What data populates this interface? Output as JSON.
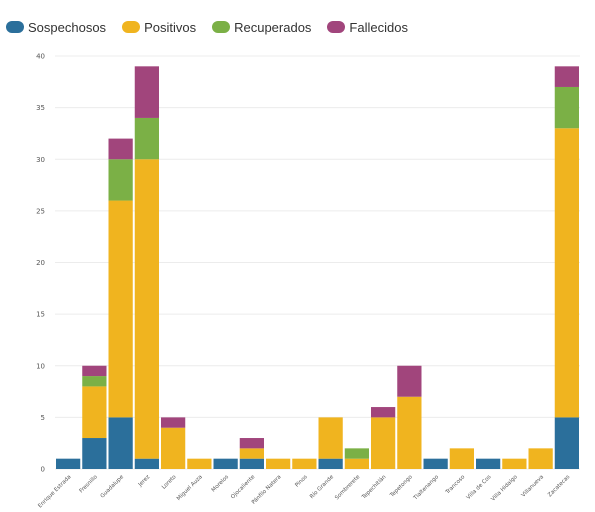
{
  "chart_data": {
    "type": "bar",
    "stacked": true,
    "title": "",
    "xlabel": "",
    "ylabel": "",
    "ylim": [
      0,
      40
    ],
    "yticks": [
      0,
      5,
      10,
      15,
      20,
      25,
      30,
      35,
      40
    ],
    "grid": true,
    "legend_position": "top-left",
    "categories": [
      "Enrique Estrada",
      "Fresnillo",
      "Guadalupe",
      "Jerez",
      "Loreto",
      "Miguel Auza",
      "Morelos",
      "Ojocaliente",
      "Pánfilo Natera",
      "Pinos",
      "Río Grande",
      "Sombrerete",
      "Tepechitlán",
      "Tepetongo",
      "Tlaltenango",
      "Trancoso",
      "Villa de Cos",
      "Villa Hidalgo",
      "Villanueva",
      "Zacatecas"
    ],
    "series": [
      {
        "name": "Sospechosos",
        "color": "#2b6f9b",
        "values": [
          1,
          3,
          5,
          1,
          0,
          0,
          1,
          1,
          0,
          0,
          1,
          0,
          0,
          0,
          1,
          0,
          1,
          0,
          0,
          5
        ]
      },
      {
        "name": "Positivos",
        "color": "#f0b41f",
        "values": [
          0,
          5,
          21,
          29,
          4,
          1,
          0,
          1,
          1,
          1,
          4,
          1,
          5,
          7,
          0,
          2,
          0,
          1,
          2,
          28
        ]
      },
      {
        "name": "Recuperados",
        "color": "#7bb046",
        "values": [
          0,
          1,
          4,
          4,
          0,
          0,
          0,
          0,
          0,
          0,
          0,
          1,
          0,
          0,
          0,
          0,
          0,
          0,
          0,
          4
        ]
      },
      {
        "name": "Fallecidos",
        "color": "#a1457c",
        "values": [
          0,
          1,
          2,
          5,
          1,
          0,
          0,
          1,
          0,
          0,
          0,
          0,
          1,
          3,
          0,
          0,
          0,
          0,
          0,
          2
        ]
      }
    ]
  }
}
